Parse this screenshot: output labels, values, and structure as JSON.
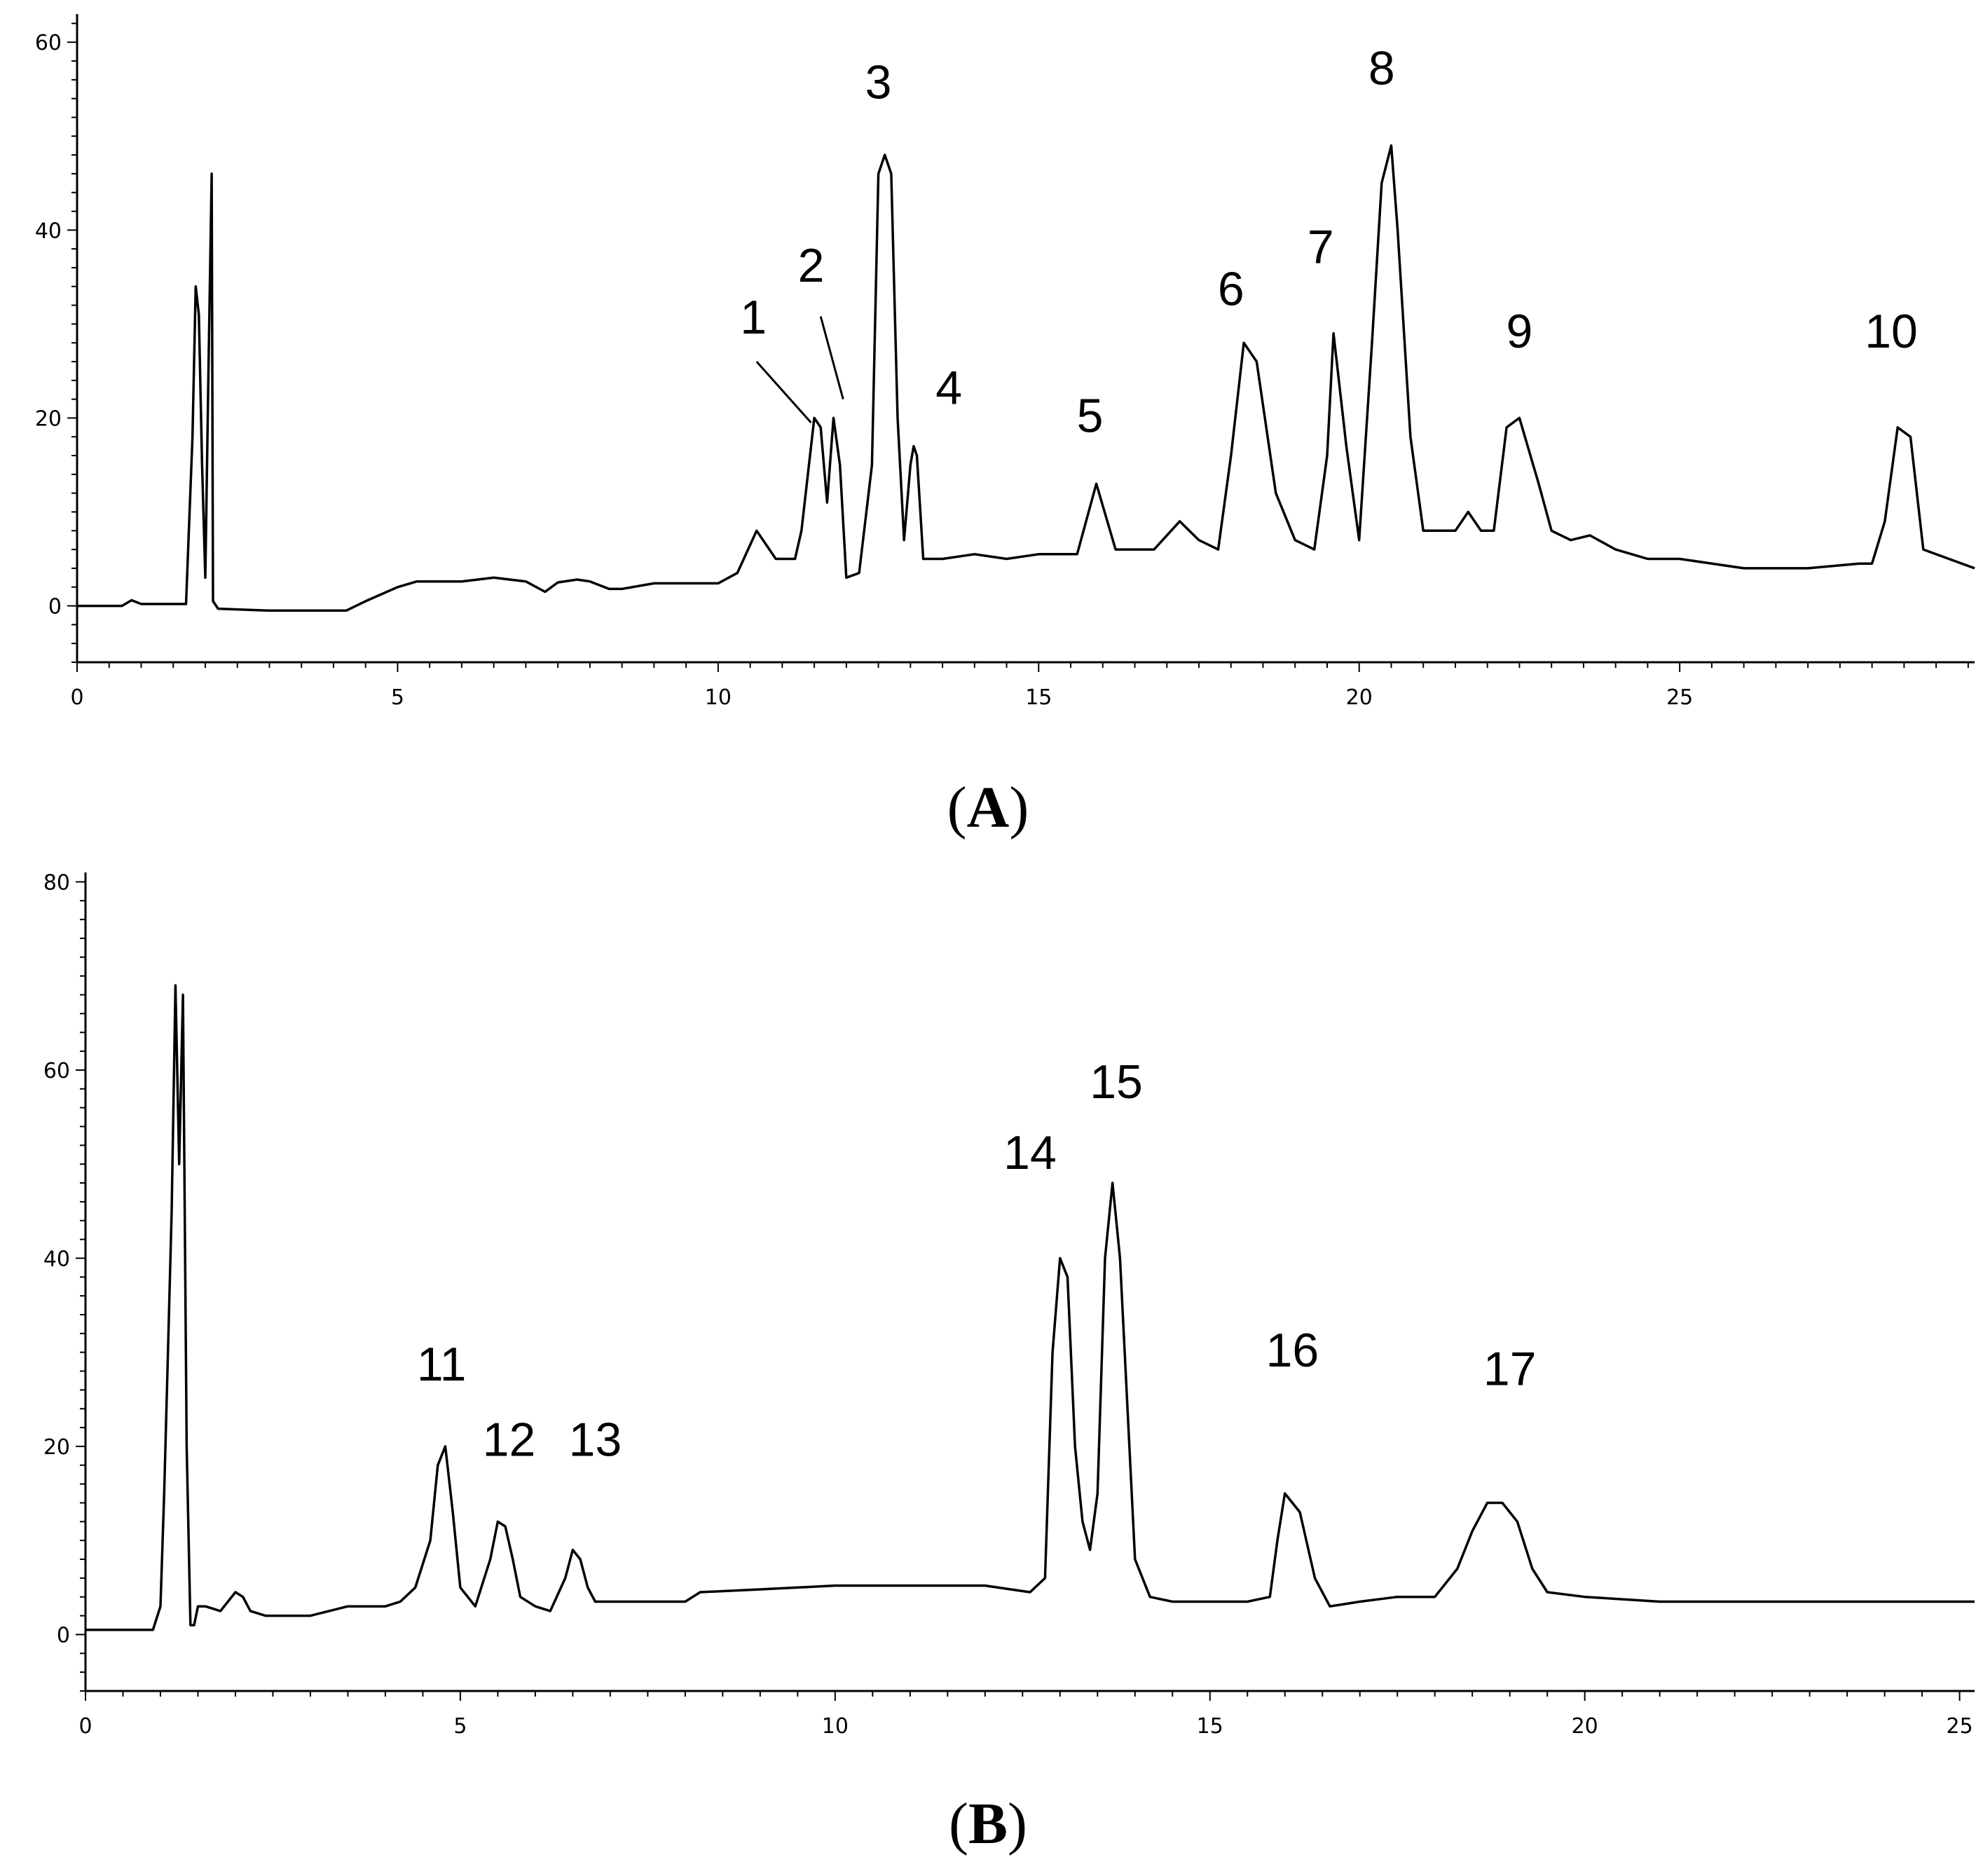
{
  "chart_data": [
    {
      "type": "line",
      "panel_label": "A",
      "xlim": [
        0,
        29.6
      ],
      "ylim": [
        -6,
        63
      ],
      "x_ticks": [
        0,
        5,
        10,
        15,
        20,
        25
      ],
      "y_ticks": [
        0,
        20,
        40,
        60
      ],
      "grid": false,
      "series": [
        {
          "x": [
            0,
            0.7,
            0.85,
            1.0,
            1.7,
            1.8,
            1.85,
            1.9,
            1.95,
            2.0,
            2.05,
            2.1,
            2.12,
            2.2,
            3.0,
            4.2,
            4.5,
            5.0,
            5.3,
            6.0,
            6.5,
            7.0,
            7.3,
            7.5,
            7.8,
            8.0,
            8.3,
            8.5,
            9.0,
            10.0,
            10.3,
            10.6,
            10.9,
            11.2,
            11.3,
            11.5,
            11.6,
            11.7,
            11.8,
            11.9,
            12.0,
            12.2,
            12.4,
            12.5,
            12.6,
            12.7,
            12.8,
            12.9,
            13.0,
            13.05,
            13.1,
            13.2,
            13.5,
            14.0,
            14.5,
            15.0,
            15.6,
            15.9,
            16.2,
            16.8,
            17.2,
            17.5,
            17.8,
            18.0,
            18.2,
            18.4,
            18.7,
            19.0,
            19.3,
            19.5,
            19.6,
            19.8,
            20.0,
            20.2,
            20.35,
            20.5,
            20.6,
            20.8,
            21.0,
            21.5,
            21.7,
            21.9,
            22.1,
            22.3,
            22.5,
            22.8,
            23.0,
            23.3,
            23.6,
            24.0,
            24.5,
            25.0,
            26.0,
            27.0,
            27.8,
            28.0,
            28.2,
            28.4,
            28.6,
            28.8,
            29.6
          ],
          "y": [
            0,
            0,
            0.6,
            0.2,
            0.2,
            18,
            34,
            31,
            15,
            3,
            25,
            46,
            0.5,
            -0.3,
            -0.5,
            -0.5,
            0.5,
            2,
            2.6,
            2.6,
            3,
            2.6,
            1.5,
            2.5,
            2.8,
            2.6,
            1.8,
            1.8,
            2.4,
            2.4,
            3.5,
            8,
            5,
            5,
            8,
            20,
            19,
            11,
            20,
            15,
            3,
            3.5,
            15,
            46,
            48,
            46,
            20,
            7,
            15,
            17,
            16,
            5,
            5,
            5.5,
            5,
            5.5,
            5.5,
            13,
            6,
            6,
            9,
            7,
            6,
            16,
            28,
            26,
            12,
            7,
            6,
            16,
            29,
            17,
            7,
            28,
            45,
            49,
            40,
            18,
            8,
            8,
            10,
            8,
            8,
            19,
            20,
            13,
            8,
            7,
            7.5,
            6,
            5,
            5,
            4,
            4,
            4.5,
            4.5,
            9,
            19,
            18,
            6,
            4
          ]
        }
      ],
      "annotations": [
        {
          "text": "1",
          "x": 10.55,
          "y": 29
        },
        {
          "text": "2",
          "x": 11.45,
          "y": 34.5
        },
        {
          "text": "3",
          "x": 12.5,
          "y": 54
        },
        {
          "text": "4",
          "x": 13.6,
          "y": 21.5
        },
        {
          "text": "5",
          "x": 15.8,
          "y": 18.5
        },
        {
          "text": "6",
          "x": 18.0,
          "y": 32
        },
        {
          "text": "7",
          "x": 19.4,
          "y": 36.5
        },
        {
          "text": "8",
          "x": 20.35,
          "y": 55.5
        },
        {
          "text": "9",
          "x": 22.5,
          "y": 27.5
        },
        {
          "text": "10",
          "x": 28.3,
          "y": 27.5
        }
      ],
      "leader_lines": [
        {
          "from": [
            10.6,
            26.0
          ],
          "to": [
            11.45,
            19.5
          ]
        },
        {
          "from": [
            11.6,
            30.8
          ],
          "to": [
            11.95,
            22.0
          ]
        }
      ]
    },
    {
      "type": "line",
      "panel_label": "B",
      "xlim": [
        0,
        25.2
      ],
      "ylim": [
        -6,
        81
      ],
      "x_ticks": [
        0,
        5,
        10,
        15,
        20,
        25
      ],
      "y_ticks": [
        0,
        20,
        40,
        60,
        80
      ],
      "grid": false,
      "series": [
        {
          "x": [
            0,
            0.9,
            1.0,
            1.05,
            1.1,
            1.15,
            1.2,
            1.25,
            1.3,
            1.35,
            1.4,
            1.45,
            1.5,
            1.6,
            1.8,
            2.0,
            2.1,
            2.2,
            2.4,
            3.0,
            3.5,
            4.0,
            4.2,
            4.4,
            4.6,
            4.7,
            4.8,
            4.9,
            5.0,
            5.2,
            5.4,
            5.5,
            5.6,
            5.7,
            5.8,
            6.0,
            6.2,
            6.4,
            6.5,
            6.6,
            6.7,
            6.8,
            7.0,
            7.5,
            8.0,
            8.2,
            9.0,
            10.0,
            11.0,
            12.0,
            12.6,
            12.8,
            12.9,
            13.0,
            13.1,
            13.2,
            13.3,
            13.4,
            13.5,
            13.6,
            13.7,
            13.8,
            13.9,
            14.0,
            14.2,
            14.5,
            15.0,
            15.5,
            15.8,
            15.9,
            16.0,
            16.2,
            16.4,
            16.6,
            17.0,
            17.5,
            18.0,
            18.3,
            18.5,
            18.7,
            18.9,
            19.1,
            19.3,
            19.5,
            20.0,
            21.0,
            22.0,
            23.0,
            24.0,
            25.2
          ],
          "y": [
            0.5,
            0.5,
            3,
            15,
            30,
            45,
            69,
            50,
            68,
            20,
            1,
            1,
            3,
            3,
            2.5,
            4.5,
            4,
            2.5,
            2,
            2,
            3,
            3,
            3.5,
            5,
            10,
            18,
            20,
            13,
            5,
            3,
            8,
            12,
            11.5,
            8,
            4,
            3,
            2.5,
            6,
            9,
            8,
            5,
            3.5,
            3.5,
            3.5,
            3.5,
            4.5,
            4.8,
            5.2,
            5.2,
            5.2,
            4.5,
            6,
            30,
            40,
            38,
            20,
            12,
            9,
            15,
            40,
            48,
            40,
            24,
            8,
            4,
            3.5,
            3.5,
            3.5,
            4,
            10,
            15,
            13,
            6,
            3,
            3.5,
            4,
            4,
            7,
            11,
            14,
            14,
            12,
            7,
            4.5,
            4,
            3.5,
            3.5,
            3.5,
            3.5,
            3.5
          ]
        }
      ],
      "annotations": [
        {
          "text": "11",
          "x": 4.75,
          "y": 27
        },
        {
          "text": "12",
          "x": 5.65,
          "y": 19
        },
        {
          "text": "13",
          "x": 6.8,
          "y": 19
        },
        {
          "text": "14",
          "x": 12.6,
          "y": 49.5
        },
        {
          "text": "15",
          "x": 13.75,
          "y": 57
        },
        {
          "text": "16",
          "x": 16.1,
          "y": 28.5
        },
        {
          "text": "17",
          "x": 19.0,
          "y": 26.5
        }
      ],
      "leader_lines": []
    }
  ]
}
